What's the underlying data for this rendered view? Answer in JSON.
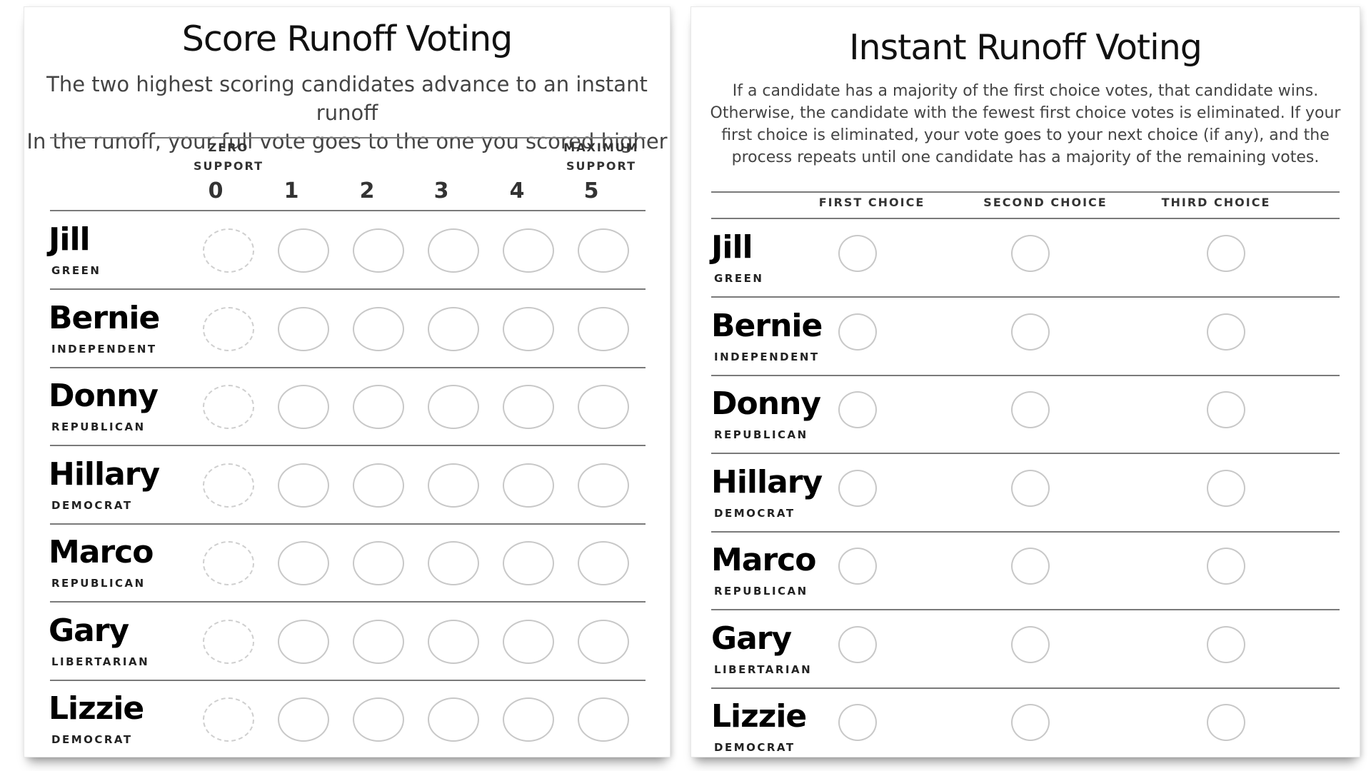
{
  "score_ballot": {
    "title": "Score Runoff Voting",
    "description_line1": "The two highest scoring candidates advance to an instant runoff",
    "description_line2": "In the runoff, your full vote goes to the one you scored higher",
    "zero_label_1": "Zero",
    "zero_label_2": "support",
    "max_label_1": "Maximum",
    "max_label_2": "support",
    "scores": [
      "0",
      "1",
      "2",
      "3",
      "4",
      "5"
    ]
  },
  "irv_ballot": {
    "title": "Instant Runoff Voting",
    "description": "If a candidate has a majority of the first choice votes, that candidate wins. Otherwise, the candidate with the fewest first choice votes is eliminated. If your first choice is eliminated, your vote goes to your next choice (if any), and the process repeats until one candidate has a majority of the remaining votes.",
    "choices": [
      "First Choice",
      "Second Choice",
      "Third Choice"
    ]
  },
  "candidates": [
    {
      "name": "Jill",
      "party": "Green"
    },
    {
      "name": "Bernie",
      "party": "Independent"
    },
    {
      "name": "Donny",
      "party": "Republican"
    },
    {
      "name": "Hillary",
      "party": "Democrat"
    },
    {
      "name": "Marco",
      "party": "Republican"
    },
    {
      "name": "Gary",
      "party": "Libertarian"
    },
    {
      "name": "Lizzie",
      "party": "Democrat"
    }
  ]
}
